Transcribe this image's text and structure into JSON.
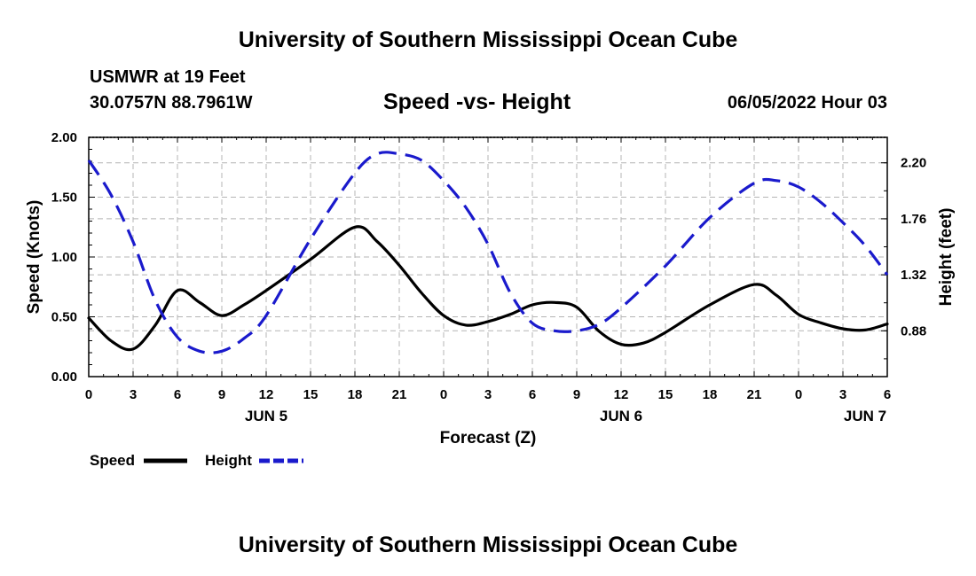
{
  "header": {
    "title": "University of Southern Mississippi Ocean Cube",
    "station_line": "USMWR at 19 Feet",
    "coords_line": "30.0757N  88.7961W",
    "chart_title": "Speed -vs- Height",
    "datetime": "06/05/2022 Hour 03"
  },
  "footer": {
    "title": "University of Southern Mississippi Ocean Cube"
  },
  "colors": {
    "speed": "#000000",
    "height": "#1a1acc",
    "grid": "#b4b4b4"
  },
  "chart_data": {
    "type": "line",
    "title": "Speed -vs- Height",
    "xlabel": "Forecast (Z)",
    "ylabel": "Speed (Knots)",
    "y2label": "Height (feet)",
    "x_range_hours": [
      0,
      54
    ],
    "x_ticks": [
      {
        "h": 0,
        "label": "0"
      },
      {
        "h": 3,
        "label": "3"
      },
      {
        "h": 6,
        "label": "6"
      },
      {
        "h": 9,
        "label": "9"
      },
      {
        "h": 12,
        "label": "12"
      },
      {
        "h": 15,
        "label": "15"
      },
      {
        "h": 18,
        "label": "18"
      },
      {
        "h": 21,
        "label": "21"
      },
      {
        "h": 24,
        "label": "0"
      },
      {
        "h": 27,
        "label": "3"
      },
      {
        "h": 30,
        "label": "6"
      },
      {
        "h": 33,
        "label": "9"
      },
      {
        "h": 36,
        "label": "12"
      },
      {
        "h": 39,
        "label": "15"
      },
      {
        "h": 42,
        "label": "18"
      },
      {
        "h": 45,
        "label": "21"
      },
      {
        "h": 48,
        "label": "0"
      },
      {
        "h": 51,
        "label": "3"
      },
      {
        "h": 54,
        "label": "6"
      }
    ],
    "date_labels": [
      {
        "h": 12,
        "label": "JUN 5"
      },
      {
        "h": 36,
        "label": "JUN 6"
      },
      {
        "h": 52.5,
        "label": "JUN 7"
      }
    ],
    "ylim": [
      0,
      2.0
    ],
    "y_ticks": [
      {
        "v": 0.0,
        "label": "0.00"
      },
      {
        "v": 0.5,
        "label": "0.50"
      },
      {
        "v": 1.0,
        "label": "1.00"
      },
      {
        "v": 1.5,
        "label": "1.50"
      },
      {
        "v": 2.0,
        "label": "2.00"
      }
    ],
    "y2lim": [
      0.52,
      2.4
    ],
    "y2_ticks": [
      {
        "v": 0.88,
        "label": "0.88"
      },
      {
        "v": 1.32,
        "label": "1.32"
      },
      {
        "v": 1.76,
        "label": "1.76"
      },
      {
        "v": 2.2,
        "label": "2.20"
      }
    ],
    "series": [
      {
        "name": "Speed",
        "axis": "left",
        "style": "solid",
        "x": [
          0,
          1.5,
          3,
          4.5,
          6,
          7.5,
          9,
          10.5,
          12,
          15,
          18,
          19.5,
          21,
          22.5,
          24,
          25.5,
          27,
          28.5,
          30,
          31.5,
          33,
          34.5,
          36,
          37.5,
          39,
          42,
          45,
          46.5,
          48,
          49.5,
          51,
          52.5,
          54
        ],
        "values": [
          0.49,
          0.3,
          0.23,
          0.43,
          0.72,
          0.62,
          0.51,
          0.6,
          0.72,
          0.98,
          1.25,
          1.13,
          0.93,
          0.7,
          0.51,
          0.43,
          0.46,
          0.52,
          0.6,
          0.62,
          0.58,
          0.38,
          0.27,
          0.28,
          0.37,
          0.6,
          0.77,
          0.68,
          0.52,
          0.45,
          0.4,
          0.39,
          0.44
        ]
      },
      {
        "name": "Height",
        "axis": "right",
        "style": "dashed",
        "x": [
          0,
          1.5,
          3,
          4.5,
          6,
          7.5,
          9,
          10.5,
          12,
          15,
          18,
          19.5,
          21,
          22.5,
          24,
          25.5,
          27,
          28.5,
          30,
          31.5,
          33,
          34.5,
          36,
          39,
          42,
          45,
          46.5,
          48,
          49.5,
          51,
          52.5,
          54
        ],
        "values": [
          2.22,
          1.95,
          1.58,
          1.12,
          0.83,
          0.72,
          0.72,
          0.82,
          1.0,
          1.6,
          2.12,
          2.27,
          2.27,
          2.22,
          2.06,
          1.85,
          1.56,
          1.18,
          0.94,
          0.88,
          0.88,
          0.93,
          1.06,
          1.39,
          1.77,
          2.04,
          2.06,
          2.01,
          1.89,
          1.73,
          1.55,
          1.32
        ]
      }
    ],
    "legend": [
      {
        "label": "Speed",
        "series": "Speed"
      },
      {
        "label": "Height",
        "series": "Height"
      }
    ]
  }
}
